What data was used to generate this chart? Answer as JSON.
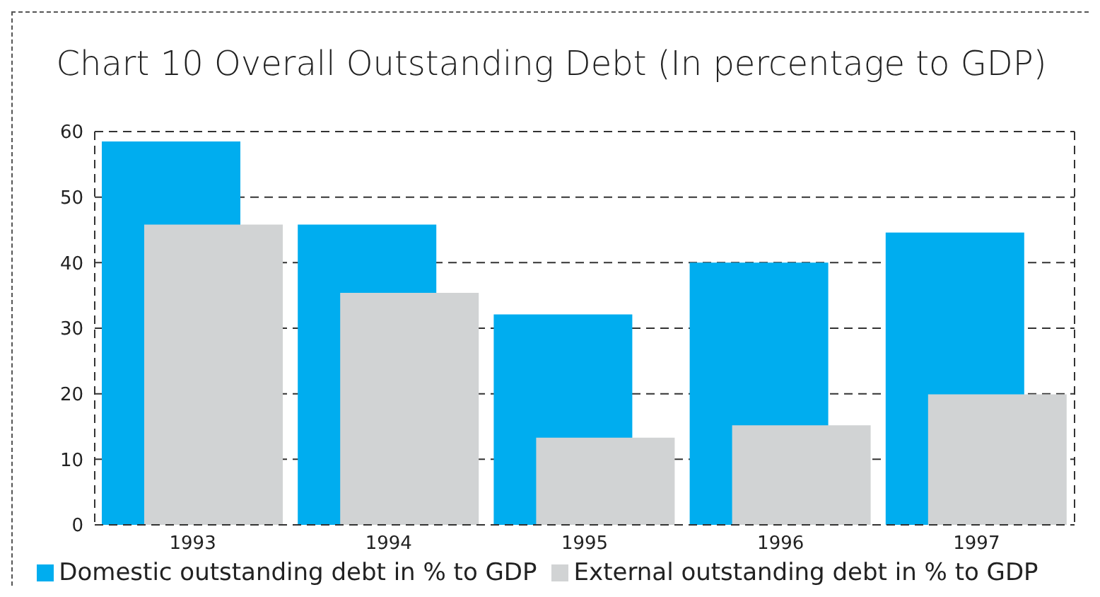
{
  "chart_data": {
    "type": "bar",
    "title": "Chart 10 Overall Outstanding Debt (In percentage to GDP)",
    "categories": [
      "1993",
      "1994",
      "1995",
      "1996",
      "1997"
    ],
    "series": [
      {
        "name": "Domestic outstanding debt in % to GDP",
        "color": "#00adef",
        "values": [
          58.5,
          45.8,
          32.1,
          40.0,
          44.6
        ]
      },
      {
        "name": "External outstanding debt in % to GDP",
        "color": "#d1d3d4",
        "values": [
          45.8,
          35.4,
          13.3,
          15.2,
          19.9
        ]
      }
    ],
    "ylim": [
      0,
      60
    ],
    "yticks": [
      0,
      10,
      20,
      30,
      40,
      50,
      60
    ],
    "grid": "y",
    "legend": "bottom"
  }
}
